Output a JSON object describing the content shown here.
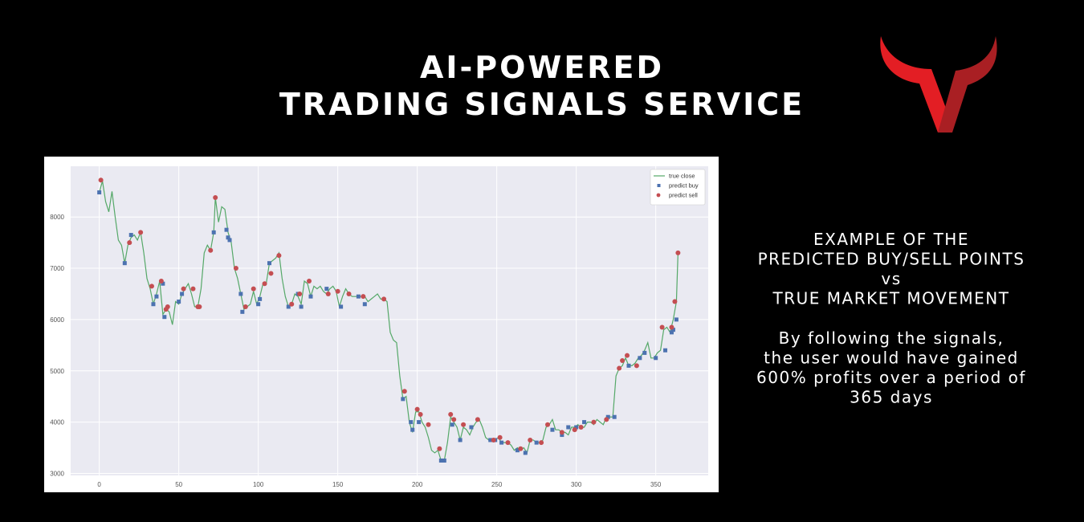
{
  "header": {
    "title": [
      "AI-POWERED",
      "TRADING SIGNALS SERVICE"
    ]
  },
  "side_text": {
    "heading": [
      "EXAMPLE OF THE",
      "PREDICTED BUY/SELL POINTS",
      "vs",
      "TRUE MARKET MOVEMENT"
    ],
    "body": [
      "By following the signals,",
      "the user would have gained",
      "600% profits over a period of",
      "365 days"
    ]
  },
  "chart_data": {
    "type": "line",
    "xlim": [
      -18,
      383
    ],
    "ylim": [
      2960,
      8990
    ],
    "xticks": [
      0,
      50,
      100,
      150,
      200,
      250,
      300,
      350
    ],
    "yticks": [
      3000,
      4000,
      5000,
      6000,
      7000,
      8000
    ],
    "grid": true,
    "legend": "upper right",
    "series": [
      {
        "name": "true close",
        "color": "#55a868",
        "marker": "line",
        "x": [
          0,
          2,
          4,
          6,
          8,
          10,
          12,
          14,
          16,
          18,
          20,
          22,
          24,
          26,
          28,
          30,
          32,
          34,
          36,
          38,
          40,
          42,
          44,
          46,
          48,
          50,
          52,
          54,
          56,
          58,
          60,
          62,
          64,
          66,
          68,
          70,
          72,
          73,
          75,
          77,
          79,
          81,
          83,
          85,
          87,
          89,
          91,
          93,
          95,
          97,
          99,
          101,
          103,
          105,
          107,
          109,
          111,
          113,
          115,
          117,
          119,
          121,
          123,
          125,
          127,
          129,
          131,
          133,
          135,
          137,
          139,
          141,
          143,
          145,
          147,
          149,
          151,
          153,
          155,
          157,
          159,
          161,
          163,
          165,
          167,
          169,
          171,
          173,
          175,
          177,
          179,
          181,
          183,
          185,
          187,
          189,
          191,
          193,
          195,
          197,
          199,
          201,
          203,
          205,
          207,
          209,
          211,
          213,
          215,
          217,
          219,
          221,
          223,
          225,
          227,
          229,
          231,
          233,
          235,
          237,
          239,
          241,
          243,
          245,
          247,
          249,
          251,
          253,
          255,
          257,
          259,
          261,
          263,
          265,
          267,
          269,
          271,
          273,
          275,
          277,
          279,
          281,
          283,
          285,
          287,
          289,
          291,
          293,
          295,
          297,
          299,
          301,
          303,
          305,
          307,
          309,
          311,
          313,
          315,
          317,
          319,
          321,
          323,
          325,
          327,
          329,
          331,
          333,
          335,
          337,
          339,
          341,
          343,
          345,
          347,
          349,
          351,
          353,
          355,
          357,
          359,
          361,
          363,
          364
        ],
        "values": [
          8480,
          8700,
          8300,
          8100,
          8500,
          8000,
          7550,
          7450,
          7100,
          7450,
          7600,
          7650,
          7550,
          7700,
          7300,
          6800,
          6600,
          6300,
          6500,
          6750,
          6100,
          6200,
          6150,
          5900,
          6350,
          6300,
          6500,
          6600,
          6700,
          6500,
          6250,
          6250,
          6600,
          7300,
          7450,
          7350,
          7700,
          8380,
          7900,
          8200,
          8150,
          7700,
          7500,
          7000,
          6800,
          6500,
          6200,
          6250,
          6300,
          6550,
          6300,
          6450,
          6700,
          6700,
          7100,
          7150,
          7200,
          7300,
          6800,
          6450,
          6250,
          6300,
          6500,
          6450,
          6300,
          6750,
          6700,
          6450,
          6650,
          6600,
          6650,
          6550,
          6500,
          6600,
          6650,
          6550,
          6250,
          6450,
          6600,
          6500,
          6450,
          6450,
          6450,
          6450,
          6450,
          6350,
          6400,
          6450,
          6500,
          6400,
          6400,
          6350,
          5750,
          5600,
          5550,
          4900,
          4450,
          4500,
          4000,
          3800,
          4200,
          4200,
          4000,
          3900,
          3700,
          3450,
          3400,
          3450,
          3250,
          3250,
          3600,
          4100,
          4000,
          3900,
          3650,
          3900,
          3850,
          3750,
          3900,
          4000,
          4050,
          3900,
          3700,
          3650,
          3650,
          3650,
          3700,
          3600,
          3600,
          3600,
          3550,
          3450,
          3500,
          3450,
          3500,
          3400,
          3650,
          3650,
          3600,
          3600,
          3650,
          3900,
          3950,
          4050,
          3850,
          3850,
          3800,
          3800,
          3750,
          3900,
          3900,
          3950,
          3900,
          3900,
          4000,
          4000,
          3950,
          4050,
          4000,
          3950,
          4100,
          4100,
          4100,
          4900,
          5050,
          5100,
          5250,
          5100,
          5100,
          5150,
          5250,
          5300,
          5400,
          5550,
          5250,
          5250,
          5350,
          5400,
          5800,
          5850,
          5750,
          6000,
          6350,
          7300
        ]
      },
      {
        "name": "predict buy",
        "color": "#4c72b0",
        "marker": "square",
        "x": [
          0,
          16,
          20,
          34,
          36,
          40,
          41,
          50,
          52,
          72,
          80,
          81,
          82,
          89,
          90,
          100,
          101,
          107,
          119,
          125,
          127,
          133,
          143,
          152,
          163,
          167,
          191,
          196,
          197,
          201,
          215,
          217,
          222,
          227,
          234,
          246,
          249,
          253,
          263,
          268,
          275,
          285,
          291,
          295,
          300,
          305,
          320,
          324,
          333,
          340,
          343,
          350,
          356,
          360,
          361,
          363
        ],
        "values": [
          8480,
          7100,
          7650,
          6300,
          6450,
          6700,
          6050,
          6350,
          6500,
          7700,
          7750,
          7600,
          7550,
          6500,
          6150,
          6300,
          6400,
          7100,
          6250,
          6500,
          6250,
          6450,
          6600,
          6250,
          6450,
          6300,
          4450,
          4000,
          3850,
          4000,
          3250,
          3250,
          3950,
          3650,
          3900,
          3650,
          3650,
          3600,
          3450,
          3400,
          3600,
          3850,
          3750,
          3900,
          3900,
          4000,
          4100,
          4100,
          5100,
          5250,
          5350,
          5250,
          5400,
          5750,
          5800,
          6000
        ]
      },
      {
        "name": "predict sell",
        "color": "#c44e52",
        "marker": "circle",
        "x": [
          1,
          19,
          26,
          33,
          39,
          42,
          43,
          53,
          59,
          62,
          63,
          70,
          73,
          86,
          92,
          97,
          104,
          108,
          113,
          121,
          126,
          132,
          144,
          150,
          157,
          166,
          179,
          192,
          200,
          202,
          207,
          214,
          221,
          223,
          229,
          238,
          248,
          252,
          257,
          265,
          271,
          278,
          282,
          291,
          299,
          303,
          311,
          319,
          327,
          329,
          332,
          338,
          354,
          360,
          362,
          364
        ],
        "values": [
          8720,
          7500,
          7700,
          6650,
          6750,
          6200,
          6250,
          6600,
          6600,
          6250,
          6250,
          7350,
          8380,
          7000,
          6250,
          6600,
          6700,
          6900,
          7250,
          6300,
          6500,
          6750,
          6500,
          6550,
          6500,
          6450,
          6400,
          4600,
          4250,
          4150,
          3950,
          3480,
          4150,
          4050,
          3950,
          4050,
          3650,
          3700,
          3600,
          3480,
          3650,
          3600,
          3950,
          3800,
          3850,
          3900,
          4000,
          4050,
          5050,
          5200,
          5300,
          5100,
          5850,
          5850,
          6350,
          7300
        ]
      }
    ]
  }
}
